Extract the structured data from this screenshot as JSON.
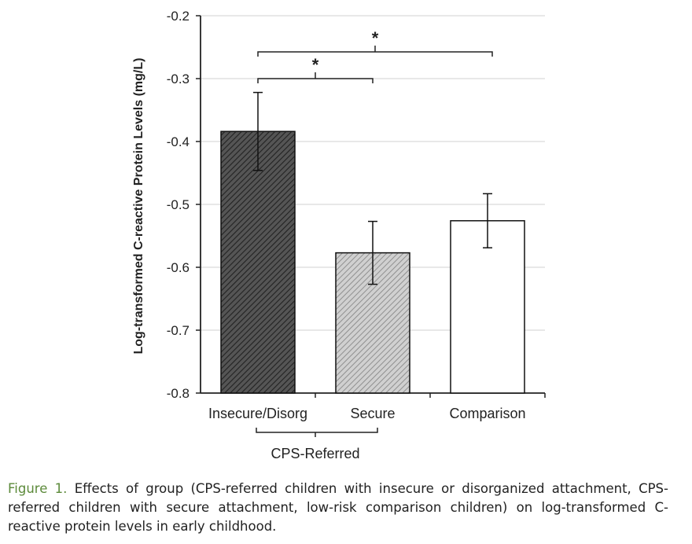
{
  "chart_data": {
    "type": "bar",
    "categories": [
      "Insecure/Disorg",
      "Secure",
      "Comparison"
    ],
    "values": [
      -0.384,
      -0.577,
      -0.526
    ],
    "errors": [
      0.062,
      0.05,
      0.043
    ],
    "ylabel": "Log-transformed  C-reactive  Protein Levels (mg/L)",
    "ylim": [
      -0.8,
      -0.2
    ],
    "yticks": [
      "-0.2",
      "-0.3",
      "-0.4",
      "-0.5",
      "-0.6",
      "-0.7",
      "-0.8"
    ],
    "grid": true,
    "group_label": "CPS-Referred",
    "significance_marker": "*",
    "fills": [
      "#444444",
      "#bbbbbb",
      "#ffffff"
    ]
  },
  "caption": {
    "label": "Figure 1.",
    "text": " Effects of group (CPS-referred children with insecure or disorganized attachment, CPS-referred children with secure attachment, low-risk comparison children) on log-transformed C-reactive protein levels in early childhood."
  }
}
